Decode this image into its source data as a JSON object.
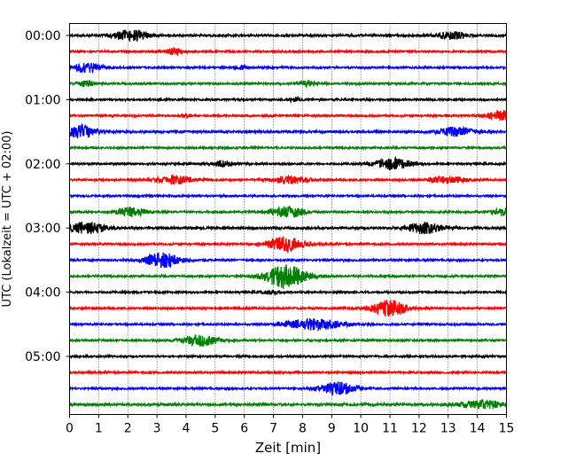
{
  "chart_data": {
    "type": "line",
    "subtype": "helicorder",
    "xlabel": "Zeit  [min]",
    "ylabel": "UTC (Lokalzeit = UTC + 02:00)",
    "xlim": [
      0,
      15
    ],
    "x_ticks": [
      0,
      1,
      2,
      3,
      4,
      5,
      6,
      7,
      8,
      9,
      10,
      11,
      12,
      13,
      14,
      15
    ],
    "x_tick_labels": [
      "0",
      "1",
      "2",
      "3",
      "4",
      "5",
      "6",
      "7",
      "8",
      "9",
      "10",
      "11",
      "12",
      "13",
      "14",
      "15"
    ],
    "vertical_grid": "dotted",
    "y_tick_labels": [
      {
        "label": "00:00",
        "row": 0
      },
      {
        "label": "01:00",
        "row": 4
      },
      {
        "label": "02:00",
        "row": 8
      },
      {
        "label": "03:00",
        "row": 12
      },
      {
        "label": "04:00",
        "row": 16
      },
      {
        "label": "05:00",
        "row": 20
      }
    ],
    "row_minutes": 15,
    "color_cycle": [
      "#000000",
      "#ff0000",
      "#0000ff",
      "#008000"
    ],
    "series": [
      {
        "row": 0,
        "color": "#000000",
        "noise": 1.2,
        "bursts": [
          {
            "t": 2.1,
            "amp": 6,
            "width": 0.6
          },
          {
            "t": 13.1,
            "amp": 4,
            "width": 0.5
          }
        ]
      },
      {
        "row": 1,
        "color": "#ff0000",
        "noise": 1.0,
        "bursts": [
          {
            "t": 3.6,
            "amp": 3.5,
            "width": 0.3
          }
        ]
      },
      {
        "row": 2,
        "color": "#0000ff",
        "noise": 1.0,
        "bursts": [
          {
            "t": 0.6,
            "amp": 5,
            "width": 0.5
          },
          {
            "t": 5.9,
            "amp": 2,
            "width": 0.2
          }
        ]
      },
      {
        "row": 3,
        "color": "#008000",
        "noise": 1.0,
        "bursts": [
          {
            "t": 0.6,
            "amp": 3,
            "width": 0.3
          },
          {
            "t": 8.2,
            "amp": 3,
            "width": 0.3
          }
        ]
      },
      {
        "row": 4,
        "color": "#000000",
        "noise": 1.0,
        "bursts": [
          {
            "t": 7.7,
            "amp": 2.5,
            "width": 0.2
          }
        ]
      },
      {
        "row": 5,
        "color": "#ff0000",
        "noise": 1.0,
        "bursts": [
          {
            "t": 4.0,
            "amp": 2.5,
            "width": 0.2
          },
          {
            "t": 14.8,
            "amp": 5,
            "width": 0.5
          }
        ]
      },
      {
        "row": 6,
        "color": "#0000ff",
        "noise": 1.2,
        "bursts": [
          {
            "t": 0.4,
            "amp": 7,
            "width": 0.5
          },
          {
            "t": 13.3,
            "amp": 5,
            "width": 0.6
          }
        ]
      },
      {
        "row": 7,
        "color": "#008000",
        "noise": 1.0,
        "bursts": []
      },
      {
        "row": 8,
        "color": "#000000",
        "noise": 1.0,
        "bursts": [
          {
            "t": 5.3,
            "amp": 3,
            "width": 0.4
          },
          {
            "t": 11.1,
            "amp": 6,
            "width": 0.6
          }
        ]
      },
      {
        "row": 9,
        "color": "#ff0000",
        "noise": 1.0,
        "bursts": [
          {
            "t": 3.6,
            "amp": 4.5,
            "width": 0.6
          },
          {
            "t": 7.6,
            "amp": 4,
            "width": 0.6
          },
          {
            "t": 13.0,
            "amp": 4,
            "width": 0.6
          }
        ]
      },
      {
        "row": 10,
        "color": "#0000ff",
        "noise": 1.0,
        "bursts": []
      },
      {
        "row": 11,
        "color": "#008000",
        "noise": 1.0,
        "bursts": [
          {
            "t": 2.1,
            "amp": 5,
            "width": 0.5
          },
          {
            "t": 7.5,
            "amp": 6,
            "width": 0.6
          },
          {
            "t": 14.9,
            "amp": 4,
            "width": 0.4
          }
        ]
      },
      {
        "row": 12,
        "color": "#000000",
        "noise": 1.2,
        "bursts": [
          {
            "t": 0.6,
            "amp": 7,
            "width": 0.6
          },
          {
            "t": 12.2,
            "amp": 6,
            "width": 0.6
          }
        ]
      },
      {
        "row": 13,
        "color": "#ff0000",
        "noise": 1.0,
        "bursts": [
          {
            "t": 7.4,
            "amp": 8,
            "width": 0.6
          }
        ]
      },
      {
        "row": 14,
        "color": "#0000ff",
        "noise": 1.0,
        "bursts": [
          {
            "t": 3.2,
            "amp": 8,
            "width": 0.6
          }
        ]
      },
      {
        "row": 15,
        "color": "#008000",
        "noise": 1.0,
        "bursts": [
          {
            "t": 7.4,
            "amp": 13,
            "width": 0.7
          }
        ]
      },
      {
        "row": 16,
        "color": "#000000",
        "noise": 1.0,
        "bursts": [
          {
            "t": 6.9,
            "amp": 2,
            "width": 0.3
          }
        ]
      },
      {
        "row": 17,
        "color": "#ff0000",
        "noise": 1.0,
        "bursts": [
          {
            "t": 11.0,
            "amp": 9,
            "width": 0.6
          }
        ]
      },
      {
        "row": 18,
        "color": "#0000ff",
        "noise": 1.0,
        "bursts": [
          {
            "t": 8.4,
            "amp": 6,
            "width": 1.0
          }
        ]
      },
      {
        "row": 19,
        "color": "#008000",
        "noise": 1.0,
        "bursts": [
          {
            "t": 4.5,
            "amp": 6,
            "width": 0.6
          }
        ]
      },
      {
        "row": 20,
        "color": "#000000",
        "noise": 1.0,
        "bursts": []
      },
      {
        "row": 21,
        "color": "#ff0000",
        "noise": 1.0,
        "bursts": []
      },
      {
        "row": 22,
        "color": "#0000ff",
        "noise": 1.0,
        "bursts": [
          {
            "t": 9.2,
            "amp": 7,
            "width": 0.6
          }
        ]
      },
      {
        "row": 23,
        "color": "#008000",
        "noise": 1.3,
        "bursts": [
          {
            "t": 14.2,
            "amp": 4,
            "width": 0.8
          }
        ]
      }
    ]
  }
}
